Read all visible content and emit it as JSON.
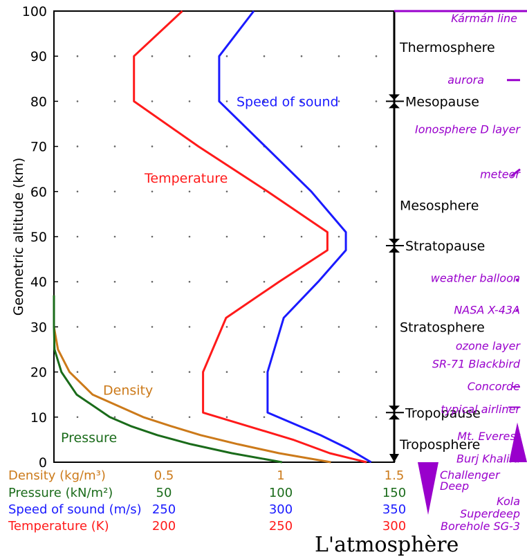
{
  "caption": "L'atmosphère",
  "chart_data": {
    "type": "line",
    "ylabel": "Geometric altitude (km)",
    "ylim": [
      0,
      100
    ],
    "yticks": [
      "0",
      "10",
      "20",
      "30",
      "40",
      "50",
      "60",
      "70",
      "80",
      "90",
      "100"
    ],
    "x_axes": [
      {
        "label": "Density (kg/m³)",
        "color": "#cc7a1a",
        "ticks": [
          "0.5",
          "1",
          "1.5"
        ]
      },
      {
        "label": "Pressure (kN/m²)",
        "color": "#1a6b1a",
        "ticks": [
          "50",
          "100",
          "150"
        ]
      },
      {
        "label": "Speed of sound (m/s)",
        "color": "#1a1aff",
        "ticks": [
          "250",
          "300",
          "350"
        ]
      },
      {
        "label": "Temperature (K)",
        "color": "#ff1a1a",
        "ticks": [
          "200",
          "250",
          "300"
        ]
      }
    ],
    "series": [
      {
        "name": "Temperature",
        "color": "#ff1a1a",
        "unit": "K",
        "points": [
          [
            288,
            0
          ],
          [
            272,
            2
          ],
          [
            256,
            5
          ],
          [
            217,
            11
          ],
          [
            217,
            20
          ],
          [
            227,
            32
          ],
          [
            250,
            40
          ],
          [
            271,
            47
          ],
          [
            271,
            51
          ],
          [
            245,
            60
          ],
          [
            215,
            70
          ],
          [
            187,
            80
          ],
          [
            187,
            90
          ],
          [
            208,
            100
          ]
        ]
      },
      {
        "name": "Speed of sound",
        "color": "#1a1aff",
        "unit": "m/s",
        "points": [
          [
            340,
            0
          ],
          [
            330,
            3
          ],
          [
            318,
            6
          ],
          [
            295,
            11
          ],
          [
            295,
            20
          ],
          [
            302,
            32
          ],
          [
            317,
            40
          ],
          [
            329,
            47
          ],
          [
            329,
            51
          ],
          [
            314,
            60
          ],
          [
            294,
            70
          ],
          [
            274,
            80
          ],
          [
            274,
            90
          ],
          [
            289,
            100
          ]
        ]
      },
      {
        "name": "Density",
        "color": "#cc7a1a",
        "unit": "kg/m³",
        "points": [
          [
            1.225,
            0
          ],
          [
            1.0,
            2
          ],
          [
            0.82,
            4
          ],
          [
            0.66,
            6
          ],
          [
            0.53,
            8
          ],
          [
            0.41,
            10
          ],
          [
            0.19,
            15
          ],
          [
            0.09,
            20
          ],
          [
            0.04,
            25
          ],
          [
            0.018,
            30
          ],
          [
            0.0,
            37
          ]
        ]
      },
      {
        "name": "Pressure",
        "color": "#1a6b1a",
        "unit": "kN/m²",
        "points": [
          [
            101.3,
            0
          ],
          [
            79.5,
            2
          ],
          [
            61.6,
            4
          ],
          [
            47.2,
            6
          ],
          [
            35.6,
            8
          ],
          [
            26.5,
            10
          ],
          [
            12.1,
            15
          ],
          [
            5.5,
            20
          ],
          [
            2.5,
            25
          ],
          [
            1.2,
            30
          ],
          [
            0.0,
            37
          ]
        ]
      }
    ],
    "layers": [
      {
        "name": "Thermosphere",
        "altitude": 92
      },
      {
        "name": "Mesopause",
        "altitude": 80,
        "boundary": true
      },
      {
        "name": "Mesosphere",
        "altitude": 57
      },
      {
        "name": "Stratopause",
        "altitude": 48,
        "boundary": true
      },
      {
        "name": "Stratosphere",
        "altitude": 30
      },
      {
        "name": "Tropopause",
        "altitude": 11,
        "boundary": true
      },
      {
        "name": "Troposphere",
        "altitude": 4
      }
    ],
    "annotations": [
      {
        "text": "Kármán line",
        "altitude": 100
      },
      {
        "text": "aurora",
        "altitude": 85
      },
      {
        "text": "Ionosphere D layer",
        "altitude": 74
      },
      {
        "text": "meteor",
        "altitude": 64
      },
      {
        "text": "weather balloon",
        "altitude": 41
      },
      {
        "text": "NASA X-43A",
        "altitude": 34
      },
      {
        "text": "ozone layer",
        "altitude": 26
      },
      {
        "text": "SR-71 Blackbird",
        "altitude": 22
      },
      {
        "text": "Concorde",
        "altitude": 17
      },
      {
        "text": "typical airliner",
        "altitude": 12
      },
      {
        "text": "Mt. Everest",
        "altitude": 6
      },
      {
        "text": "Burj Khalifa",
        "altitude": 1
      },
      {
        "text": "Challenger Deep",
        "altitude": -4
      },
      {
        "text": "Kola Superdeep Borehole SG-3",
        "altitude": -10
      }
    ],
    "annotation_color": "#9900cc"
  }
}
